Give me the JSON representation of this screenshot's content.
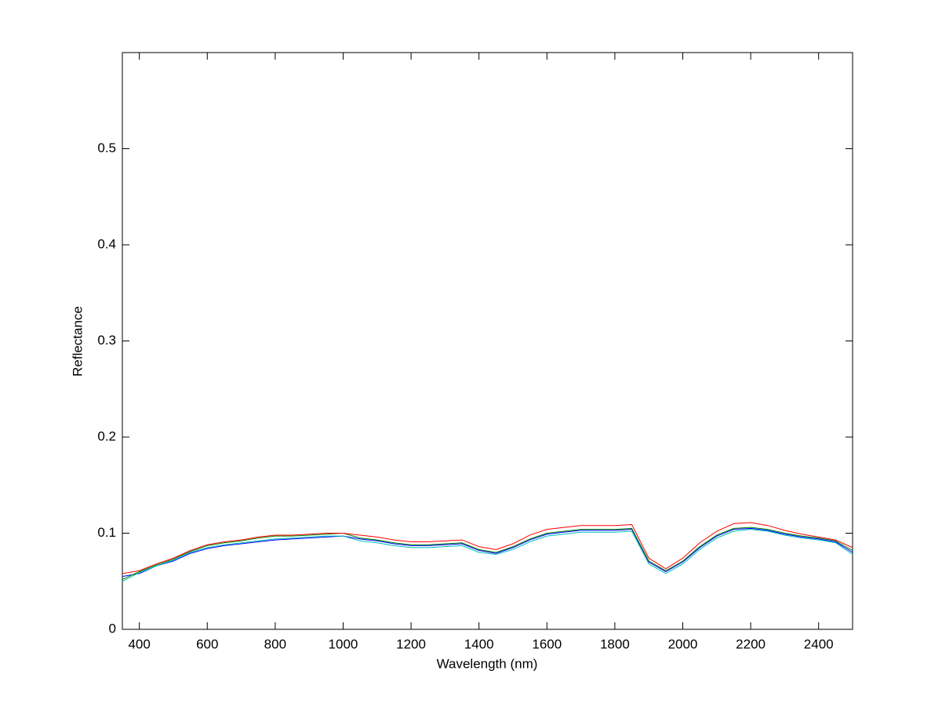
{
  "chart_data": {
    "type": "line",
    "x_label": "Wavelength (nm)",
    "y_label": "Reflectance",
    "x": [
      350,
      400,
      450,
      500,
      550,
      600,
      650,
      700,
      750,
      800,
      850,
      900,
      950,
      1000,
      1050,
      1100,
      1150,
      1200,
      1250,
      1300,
      1350,
      1400,
      1450,
      1500,
      1550,
      1600,
      1650,
      1700,
      1750,
      1800,
      1850,
      1900,
      1950,
      2000,
      2050,
      2100,
      2150,
      2200,
      2250,
      2300,
      2350,
      2400,
      2450,
      2500
    ],
    "series": [
      {
        "color": "#0000ff",
        "values": [
          0.055,
          0.058,
          0.066,
          0.071,
          0.079,
          0.084,
          0.087,
          0.089,
          0.091,
          0.093,
          0.094,
          0.095,
          0.096,
          0.097,
          0.094,
          0.092,
          0.089,
          0.087,
          0.087,
          0.088,
          0.089,
          0.082,
          0.079,
          0.085,
          0.093,
          0.099,
          0.101,
          0.103,
          0.103,
          0.103,
          0.104,
          0.07,
          0.06,
          0.07,
          0.085,
          0.097,
          0.104,
          0.105,
          0.103,
          0.099,
          0.096,
          0.094,
          0.091,
          0.08
        ]
      },
      {
        "color": "#008000",
        "values": [
          0.052,
          0.06,
          0.067,
          0.073,
          0.081,
          0.087,
          0.09,
          0.092,
          0.095,
          0.097,
          0.097,
          0.098,
          0.099,
          0.1,
          0.095,
          0.093,
          0.09,
          0.088,
          0.088,
          0.089,
          0.09,
          0.083,
          0.08,
          0.086,
          0.094,
          0.1,
          0.102,
          0.104,
          0.104,
          0.104,
          0.105,
          0.071,
          0.061,
          0.071,
          0.086,
          0.098,
          0.105,
          0.106,
          0.104,
          0.1,
          0.097,
          0.095,
          0.092,
          0.082
        ]
      },
      {
        "color": "#ff0000",
        "values": [
          0.058,
          0.061,
          0.068,
          0.074,
          0.082,
          0.088,
          0.091,
          0.093,
          0.096,
          0.098,
          0.098,
          0.099,
          0.1,
          0.1,
          0.098,
          0.096,
          0.093,
          0.091,
          0.091,
          0.092,
          0.093,
          0.086,
          0.083,
          0.089,
          0.098,
          0.104,
          0.106,
          0.108,
          0.108,
          0.108,
          0.109,
          0.074,
          0.063,
          0.074,
          0.09,
          0.102,
          0.11,
          0.111,
          0.108,
          0.103,
          0.099,
          0.096,
          0.093,
          0.085
        ]
      },
      {
        "color": "#00bfbf",
        "values": [
          0.05,
          0.059,
          0.066,
          0.072,
          0.08,
          0.085,
          0.088,
          0.09,
          0.092,
          0.094,
          0.095,
          0.096,
          0.097,
          0.097,
          0.092,
          0.09,
          0.087,
          0.085,
          0.085,
          0.086,
          0.087,
          0.08,
          0.078,
          0.083,
          0.091,
          0.097,
          0.099,
          0.101,
          0.101,
          0.101,
          0.102,
          0.068,
          0.058,
          0.068,
          0.083,
          0.095,
          0.102,
          0.104,
          0.102,
          0.098,
          0.095,
          0.093,
          0.09,
          0.078
        ]
      }
    ],
    "xlim": [
      350,
      2500
    ],
    "ylim": [
      0,
      0.6
    ],
    "xticks": [
      400,
      600,
      800,
      1000,
      1200,
      1400,
      1600,
      1800,
      2000,
      2200,
      2400
    ],
    "yticks": [
      0,
      0.1,
      0.2,
      0.3,
      0.4,
      0.5
    ],
    "grid": false
  }
}
